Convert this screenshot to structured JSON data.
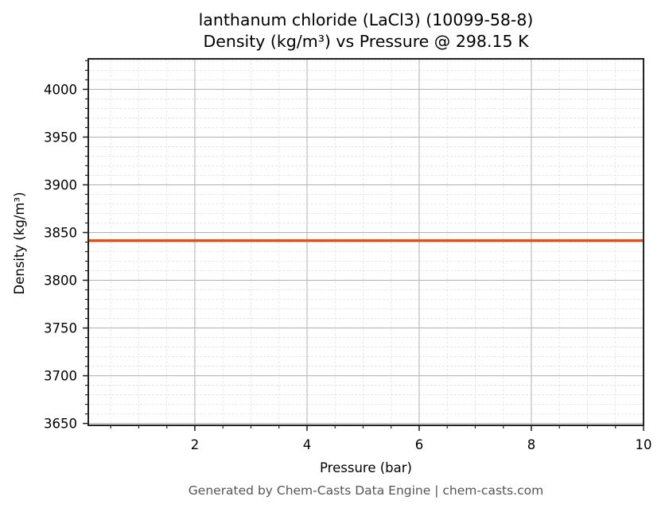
{
  "chart_data": {
    "type": "line",
    "title": "lanthanum chloride (LaCl3) (10099-58-8)",
    "subtitle": "Density (kg/m³) vs Pressure @ 298.15 K",
    "xlabel": "Pressure (bar)",
    "ylabel": "Density (kg/m³)",
    "xlim": [
      0.1,
      10
    ],
    "ylim": [
      3648,
      4032
    ],
    "x_ticks": [
      2,
      4,
      6,
      8,
      10
    ],
    "x_tick_labels": [
      "2",
      "4",
      "6",
      "8",
      "10"
    ],
    "y_ticks": [
      3650,
      3700,
      3750,
      3800,
      3850,
      3900,
      3950,
      4000
    ],
    "y_tick_labels": [
      "3650",
      "3700",
      "3750",
      "3800",
      "3850",
      "3900",
      "3950",
      "4000"
    ],
    "x_minor_step": 0.5,
    "y_minor_step": 10,
    "grid": true,
    "legend": null,
    "series": [
      {
        "name": "Density",
        "color": "#d45522",
        "x": [
          0.1,
          1,
          2,
          3,
          4,
          5,
          6,
          7,
          8,
          9,
          10
        ],
        "values": [
          3841.6,
          3841.6,
          3841.6,
          3841.6,
          3841.6,
          3841.6,
          3841.6,
          3841.6,
          3841.6,
          3841.6,
          3841.6
        ]
      }
    ]
  },
  "footer": "Generated by Chem-Casts Data Engine | chem-casts.com"
}
